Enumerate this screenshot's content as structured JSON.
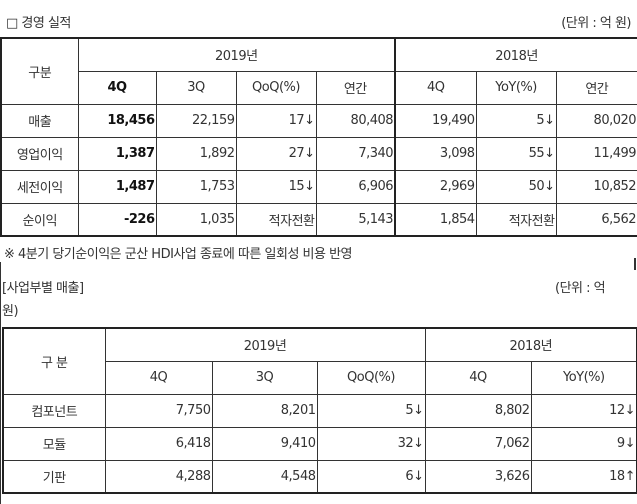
{
  "section1": {
    "title": "□ 경영 실적",
    "unit": "(단위 : 억 원)",
    "header": {
      "category": "구분",
      "year2019": "2019년",
      "year2018": "2018년",
      "cols": [
        "4Q",
        "3Q",
        "QoQ(%)",
        "연간",
        "4Q",
        "YoY(%)",
        "연간"
      ]
    },
    "rows": [
      {
        "label": "매출",
        "cells": [
          "18,456",
          "22,159",
          "17↓",
          "80,408",
          "19,490",
          "5↓",
          "80,020"
        ]
      },
      {
        "label": "영업이익",
        "cells": [
          "1,387",
          "1,892",
          "27↓",
          "7,340",
          "3,098",
          "55↓",
          "11,499"
        ]
      },
      {
        "label": "세전이익",
        "cells": [
          "1,487",
          "1,753",
          "15↓",
          "6,906",
          "2,969",
          "50↓",
          "10,852"
        ]
      },
      {
        "label": "순이익",
        "cells": [
          "-226",
          "1,035",
          "적자전환",
          "5,143",
          "1,854",
          "적자전환",
          "6,562"
        ]
      }
    ],
    "footnote": "※ 4분기 당기순이익은 군산 HDI사업 종료에 따른 일회성 비용 반영"
  },
  "section2": {
    "title": "[사업부별 매출]",
    "unit_line1": "(단위 : 억",
    "unit_line2": "원)",
    "header": {
      "category": "구 분",
      "year2019": "2019년",
      "year2018": "2018년",
      "cols": [
        "4Q",
        "3Q",
        "QoQ(%)",
        "4Q",
        "YoY(%)"
      ]
    },
    "rows": [
      {
        "label": "컴포넌트",
        "cells": [
          "7,750",
          "8,201",
          "5↓",
          "8,802",
          "12↓"
        ]
      },
      {
        "label": "모듈",
        "cells": [
          "6,418",
          "9,410",
          "32↓",
          "7,062",
          "9↓"
        ]
      },
      {
        "label": "기판",
        "cells": [
          "4,288",
          "4,548",
          "6↓",
          "3,626",
          "18↑"
        ]
      }
    ]
  }
}
